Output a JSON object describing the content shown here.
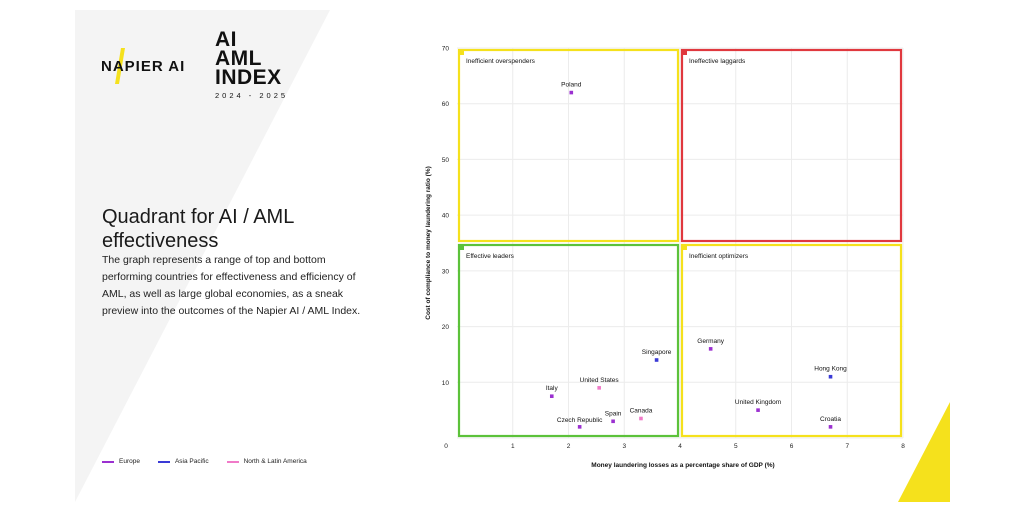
{
  "brand": {
    "napier_logo_text": "NAPIER AI",
    "index_logo_lines": [
      "AI",
      "AML",
      "INDEX"
    ],
    "index_years": "2024 - 2025"
  },
  "heading": "Quadrant for AI / AML effectiveness",
  "description": "The graph represents a range of top and bottom performing countries for effectiveness and efficiency of AML, as well as large global economies, as a sneak preview into the outcomes of the Napier AI / AML Index.",
  "legend": [
    {
      "label": "Europe",
      "color": "#9b30d0"
    },
    {
      "label": "Asia Pacific",
      "color": "#3a3ad6"
    },
    {
      "label": "North & Latin America",
      "color": "#f07ac8"
    }
  ],
  "colors": {
    "yellow": "#f5e11c",
    "red": "#e0383e",
    "green": "#5cc23a",
    "europe": "#9b30d0",
    "asia_pacific": "#3a3ad6",
    "americas": "#f07ac8"
  },
  "chart_data": {
    "type": "scatter",
    "xlabel": "Money laundering losses as a percentage share of GDP (%)",
    "ylabel": "Cost of compliance to money laundering ratio (%)",
    "xlim": [
      0,
      8
    ],
    "ylim": [
      0,
      70
    ],
    "xticks": [
      1,
      2,
      3,
      4,
      5,
      6,
      7,
      8
    ],
    "yticks": [
      0,
      10,
      20,
      30,
      40,
      50,
      60,
      70
    ],
    "quadrants": [
      {
        "label": "Inefficient overspenders",
        "x": [
          0,
          4
        ],
        "y": [
          35,
          70
        ],
        "color": "yellow"
      },
      {
        "label": "Ineffective laggards",
        "x": [
          4,
          8
        ],
        "y": [
          35,
          70
        ],
        "color": "red"
      },
      {
        "label": "Effective leaders",
        "x": [
          0,
          4
        ],
        "y": [
          0,
          35
        ],
        "color": "green"
      },
      {
        "label": "Inefficient optimizers",
        "x": [
          4,
          8
        ],
        "y": [
          0,
          35
        ],
        "color": "yellow"
      }
    ],
    "points": [
      {
        "label": "Poland",
        "x": 2.05,
        "y": 62,
        "region": "europe"
      },
      {
        "label": "Singapore",
        "x": 3.58,
        "y": 14,
        "region": "asia_pacific"
      },
      {
        "label": "Italy",
        "x": 1.7,
        "y": 7.5,
        "region": "europe"
      },
      {
        "label": "United States",
        "x": 2.55,
        "y": 9,
        "region": "americas"
      },
      {
        "label": "Czech Republic",
        "x": 2.2,
        "y": 2,
        "region": "europe"
      },
      {
        "label": "Spain",
        "x": 2.8,
        "y": 3,
        "region": "europe"
      },
      {
        "label": "Canada",
        "x": 3.3,
        "y": 3.5,
        "region": "americas"
      },
      {
        "label": "Germany",
        "x": 4.55,
        "y": 16,
        "region": "europe"
      },
      {
        "label": "Hong Kong",
        "x": 6.7,
        "y": 11,
        "region": "asia_pacific"
      },
      {
        "label": "United Kingdom",
        "x": 5.4,
        "y": 5,
        "region": "europe"
      },
      {
        "label": "Croatia",
        "x": 6.7,
        "y": 2,
        "region": "europe"
      }
    ]
  }
}
